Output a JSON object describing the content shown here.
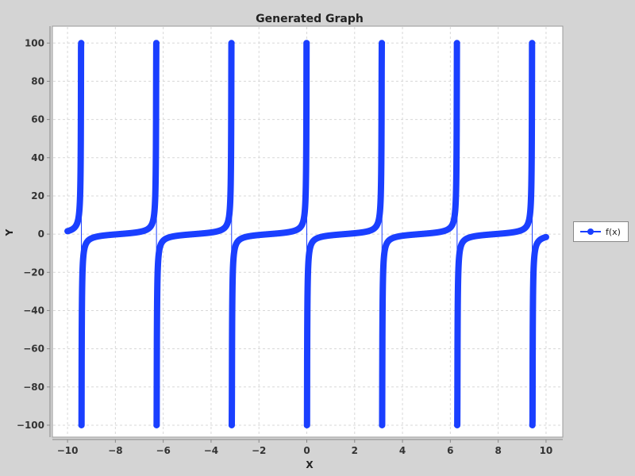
{
  "chart_data": {
    "type": "line",
    "title": "Generated Graph",
    "xlabel": "X",
    "ylabel": "Y",
    "xlim": [
      -10.5,
      10.5
    ],
    "ylim": [
      -105,
      108
    ],
    "xticks": [
      -10,
      -8,
      -6,
      -4,
      -2,
      0,
      2,
      4,
      6,
      8,
      10
    ],
    "yticks": [
      -100,
      -80,
      -60,
      -40,
      -20,
      0,
      20,
      40,
      60,
      80,
      100
    ],
    "grid": true,
    "legend_position": "right",
    "series": [
      {
        "name": "f(x)",
        "color": "#1a3fff",
        "function": "-1/tan(x)",
        "x_range": [
          -10,
          10
        ],
        "clip": [
          -100,
          100
        ],
        "marker": "circle"
      }
    ]
  }
}
